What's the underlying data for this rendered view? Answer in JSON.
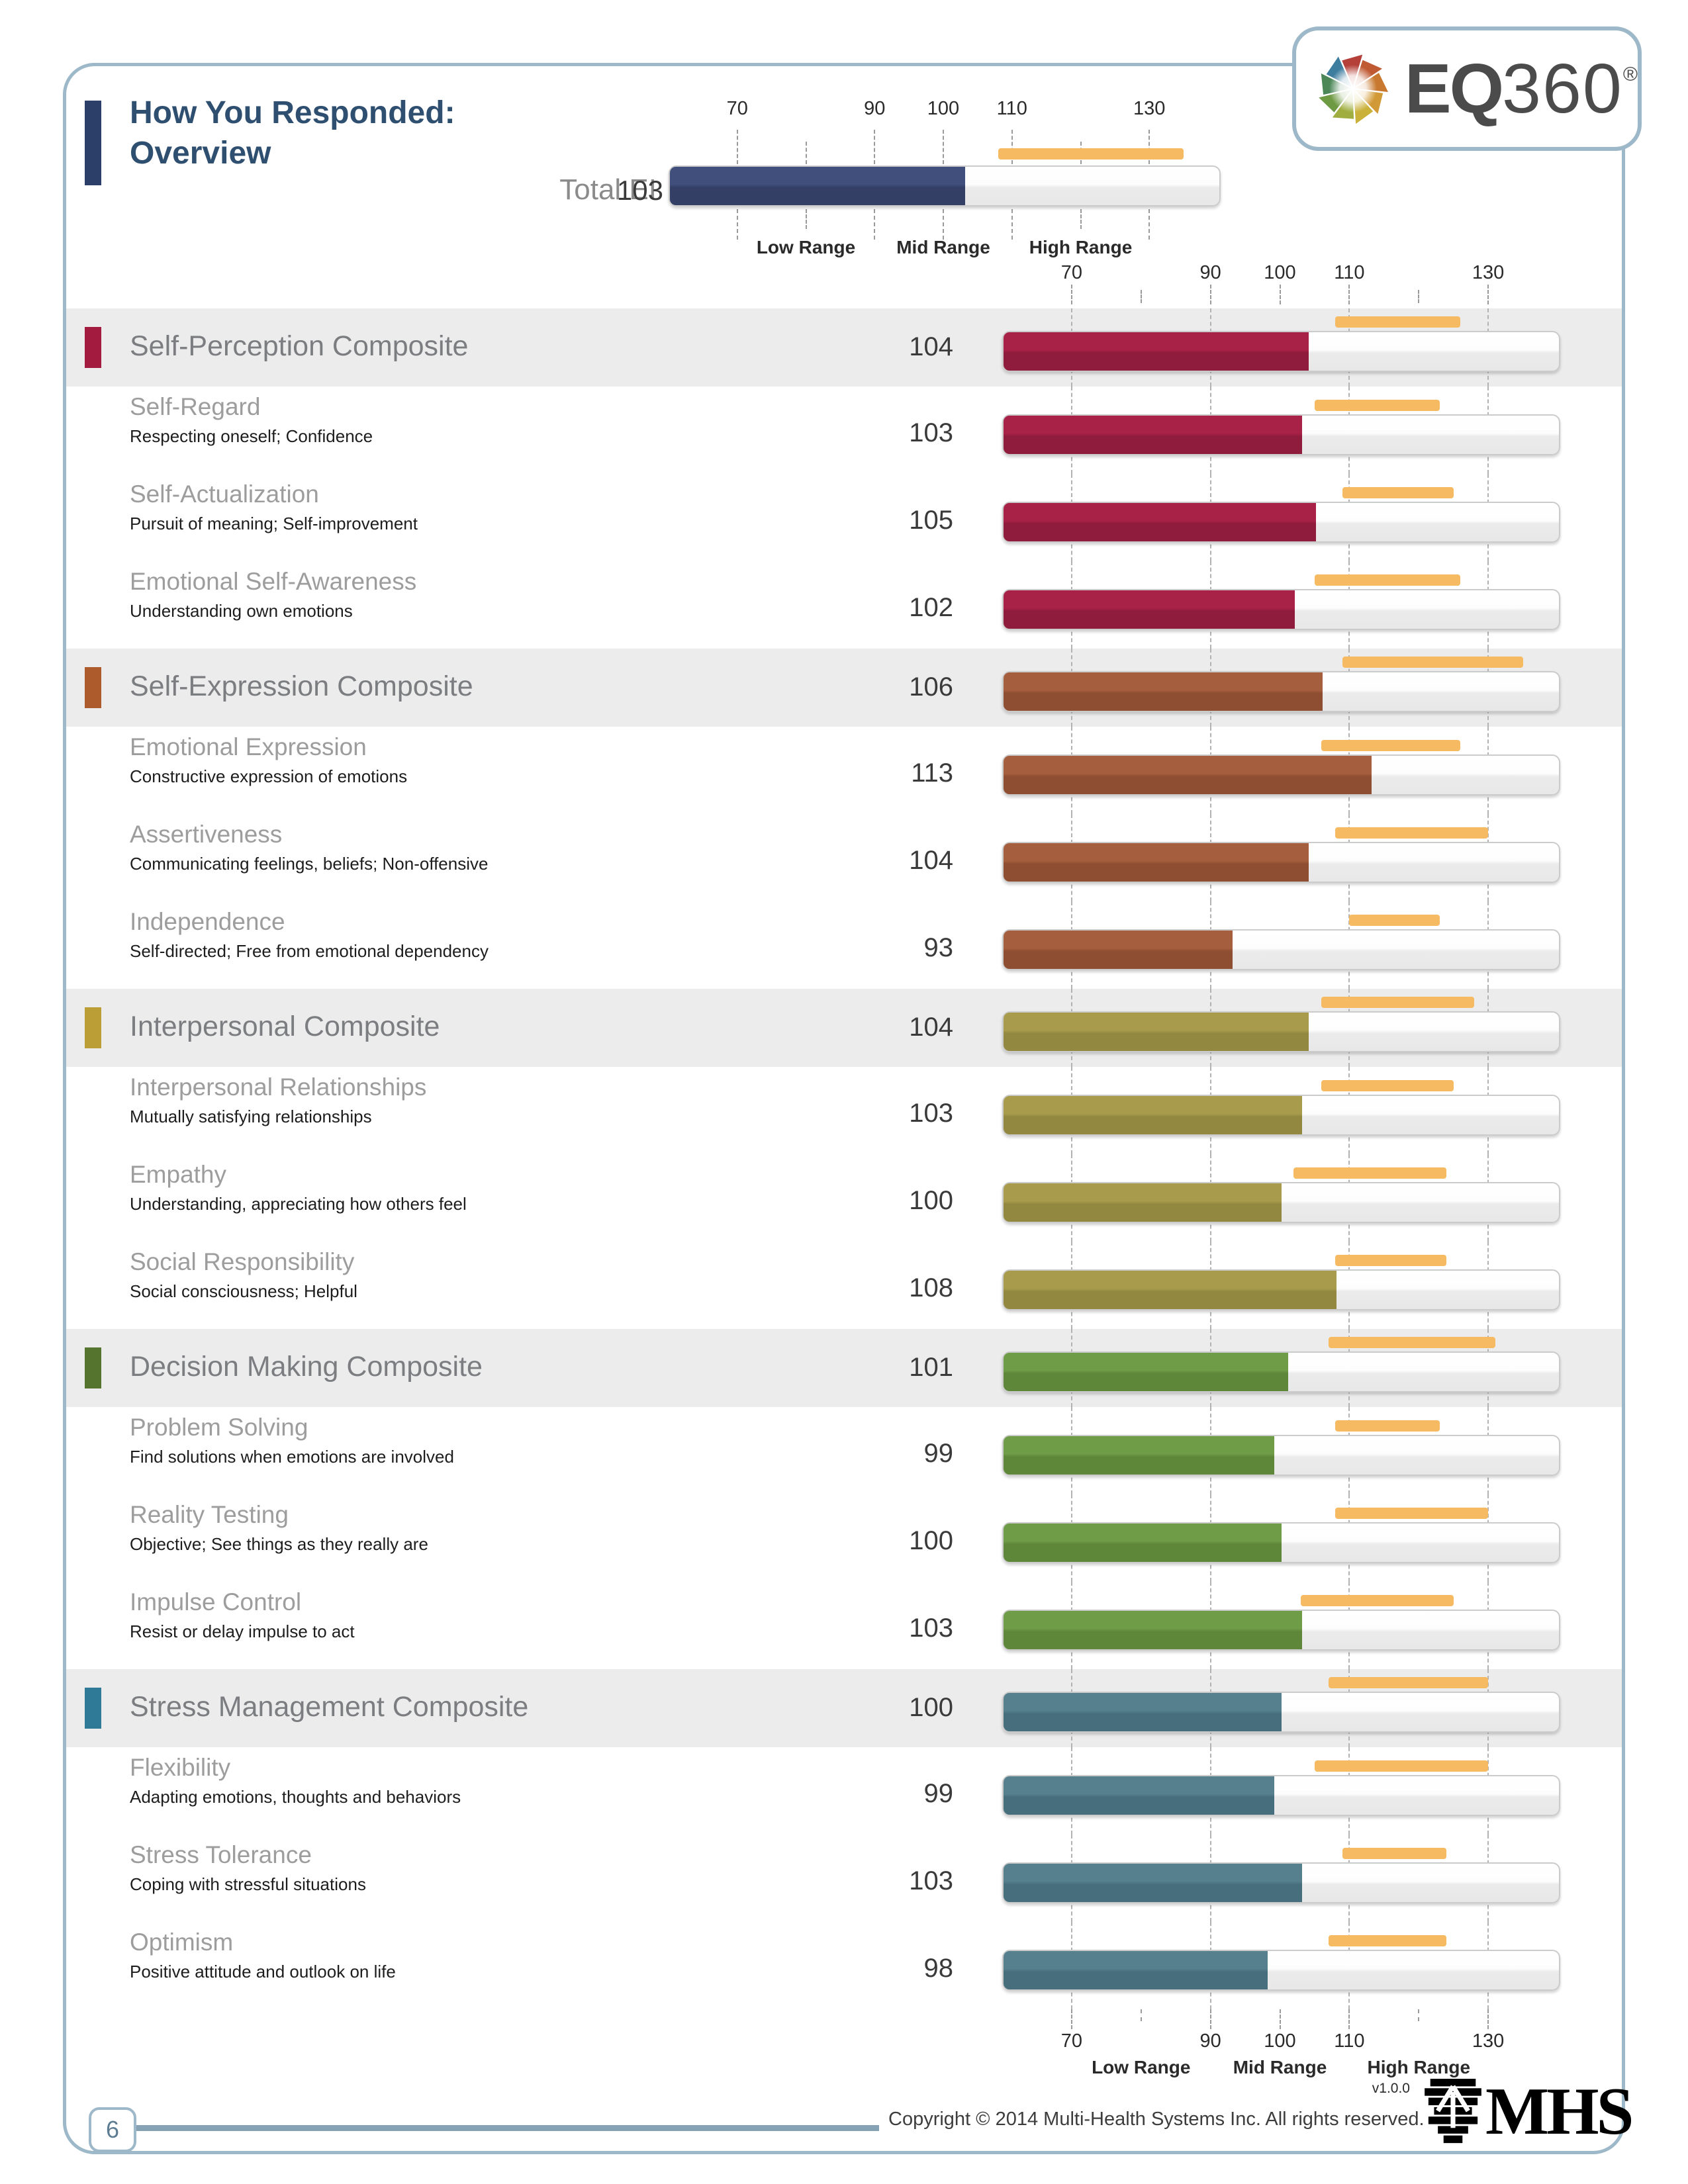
{
  "page": {
    "number": "6",
    "version": "v1.0.0",
    "copyright": "Copyright © 2014 Multi-Health Systems Inc. All rights reserved."
  },
  "header": {
    "title_line1": "How You Responded:",
    "title_line2": "Overview"
  },
  "logo": {
    "eq": "EQ",
    "num": "360",
    "reg": "®"
  },
  "mhs": {
    "text": "MHS"
  },
  "chart_data": {
    "type": "bar",
    "title": "How You Responded: Overview",
    "scale": {
      "min": 60,
      "max": 140,
      "tick_values": [
        70,
        80,
        90,
        100,
        110,
        120,
        130
      ],
      "tick_labels": [
        70,
        90,
        100,
        110,
        130
      ],
      "range_labels": [
        "Low Range",
        "Mid Range",
        "High Range"
      ],
      "range_label_centers": [
        80,
        100,
        120
      ]
    },
    "colors": {
      "rater_band": "#f6ba62",
      "grid": "#b2b2b2",
      "band_bg": "#ececec",
      "frame_blue": "#9db8c8",
      "title_blue": "#2f4f70"
    },
    "total": {
      "label": "Total EI",
      "value": 103,
      "rater_range": [
        108,
        135
      ],
      "bar_top": "#404f7b",
      "bar_bottom": "#333f64"
    },
    "sections": [
      {
        "title": "Self-Perception Composite",
        "value": 104,
        "rater_range": [
          108,
          126
        ],
        "accent": "#a31c40",
        "bar_top": "#a82147",
        "bar_bottom": "#8f1c3c",
        "subscales": [
          {
            "title": "Self-Regard",
            "desc": "Respecting oneself; Confidence",
            "value": 103,
            "rater_range": [
              105,
              123
            ]
          },
          {
            "title": "Self-Actualization",
            "desc": "Pursuit of meaning; Self-improvement",
            "value": 105,
            "rater_range": [
              109,
              125
            ]
          },
          {
            "title": "Emotional Self-Awareness",
            "desc": "Understanding own emotions",
            "value": 102,
            "rater_range": [
              105,
              126
            ]
          }
        ]
      },
      {
        "title": "Self-Expression Composite",
        "value": 106,
        "rater_range": [
          109,
          135
        ],
        "accent": "#ad5a2d",
        "bar_top": "#a65f3e",
        "bar_bottom": "#8e4e31",
        "subscales": [
          {
            "title": "Emotional Expression",
            "desc": "Constructive expression of emotions",
            "value": 113,
            "rater_range": [
              106,
              126
            ]
          },
          {
            "title": "Assertiveness",
            "desc": "Communicating feelings, beliefs; Non-offensive",
            "value": 104,
            "rater_range": [
              108,
              130
            ]
          },
          {
            "title": "Independence",
            "desc": "Self-directed; Free from emotional dependency",
            "value": 93,
            "rater_range": [
              110,
              123
            ]
          }
        ]
      },
      {
        "title": "Interpersonal Composite",
        "value": 104,
        "rater_range": [
          106,
          128
        ],
        "accent": "#bb9e35",
        "bar_top": "#a89c4c",
        "bar_bottom": "#93883f",
        "subscales": [
          {
            "title": "Interpersonal Relationships",
            "desc": "Mutually satisfying relationships",
            "value": 103,
            "rater_range": [
              106,
              125
            ]
          },
          {
            "title": "Empathy",
            "desc": "Understanding, appreciating how others feel",
            "value": 100,
            "rater_range": [
              102,
              124
            ]
          },
          {
            "title": "Social Responsibility",
            "desc": "Social consciousness; Helpful",
            "value": 108,
            "rater_range": [
              108,
              124
            ]
          }
        ]
      },
      {
        "title": "Decision Making Composite",
        "value": 101,
        "rater_range": [
          107,
          131
        ],
        "accent": "#55752e",
        "bar_top": "#6f9c47",
        "bar_bottom": "#5e873a",
        "subscales": [
          {
            "title": "Problem Solving",
            "desc": "Find solutions when emotions are involved",
            "value": 99,
            "rater_range": [
              108,
              123
            ]
          },
          {
            "title": "Reality Testing",
            "desc": "Objective; See things as they really are",
            "value": 100,
            "rater_range": [
              108,
              130
            ]
          },
          {
            "title": "Impulse Control",
            "desc": "Resist or delay impulse to act",
            "value": 103,
            "rater_range": [
              103,
              125
            ]
          }
        ]
      },
      {
        "title": "Stress Management Composite",
        "value": 100,
        "rater_range": [
          107,
          130
        ],
        "accent": "#2f7b97",
        "bar_top": "#57808f",
        "bar_bottom": "#466e7d",
        "subscales": [
          {
            "title": "Flexibility",
            "desc": "Adapting emotions, thoughts and behaviors",
            "value": 99,
            "rater_range": [
              105,
              130
            ]
          },
          {
            "title": "Stress Tolerance",
            "desc": "Coping with stressful situations",
            "value": 103,
            "rater_range": [
              109,
              124
            ]
          },
          {
            "title": "Optimism",
            "desc": "Positive attitude and outlook on life",
            "value": 98,
            "rater_range": [
              107,
              124
            ]
          }
        ]
      }
    ]
  }
}
